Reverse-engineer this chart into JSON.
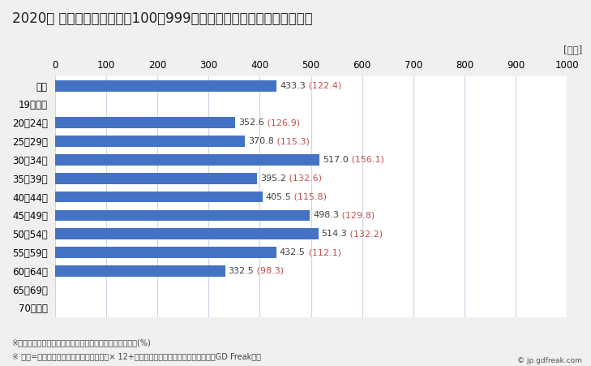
{
  "title": "2020年 民間企業（従業者数100～999人）フルタイム労働者の平均年収",
  "categories": [
    "全体",
    "19歳以下",
    "20～24歳",
    "25～29歳",
    "30～34歳",
    "35～39歳",
    "40～44歳",
    "45～49歳",
    "50～54歳",
    "55～59歳",
    "60～64歳",
    "65～69歳",
    "70歳以上"
  ],
  "values": [
    433.3,
    null,
    352.6,
    370.8,
    517.0,
    395.2,
    405.5,
    498.3,
    514.3,
    432.5,
    332.5,
    null,
    null
  ],
  "label_main": [
    "433.3",
    "",
    "352.6",
    "370.8",
    "517.0",
    "395.2",
    "405.5",
    "498.3",
    "514.3",
    "432.5",
    "332.5",
    "",
    ""
  ],
  "label_paren": [
    " (122.4)",
    "",
    " (126.9)",
    " (115.3)",
    " (156.1)",
    " (132.6)",
    " (115.8)",
    " (129.8)",
    " (132.2)",
    " (112.1)",
    " (98.3)",
    "",
    ""
  ],
  "bar_color": "#4472C4",
  "label_color_main": "#404040",
  "label_color_paren": "#C0504D",
  "xlim": [
    0,
    1000
  ],
  "xticks": [
    0,
    100,
    200,
    300,
    400,
    500,
    600,
    700,
    800,
    900,
    1000
  ],
  "xlabel_unit": "[万円]",
  "footnote1": "※（）内は県内の同業種・同年齢層の平均所得に対する比(%)",
  "footnote2": "※ 年収=「きまって支給する現金給与額」× 12+「年間賞与その他特別給与額」としてGD Freak推計",
  "watermark": "© jp.gdfreak.com",
  "title_fontsize": 12,
  "axis_fontsize": 8.5,
  "label_fontsize": 8,
  "footnote_fontsize": 7,
  "background_color": "#F0F0F0",
  "plot_bg_color": "#FFFFFF"
}
